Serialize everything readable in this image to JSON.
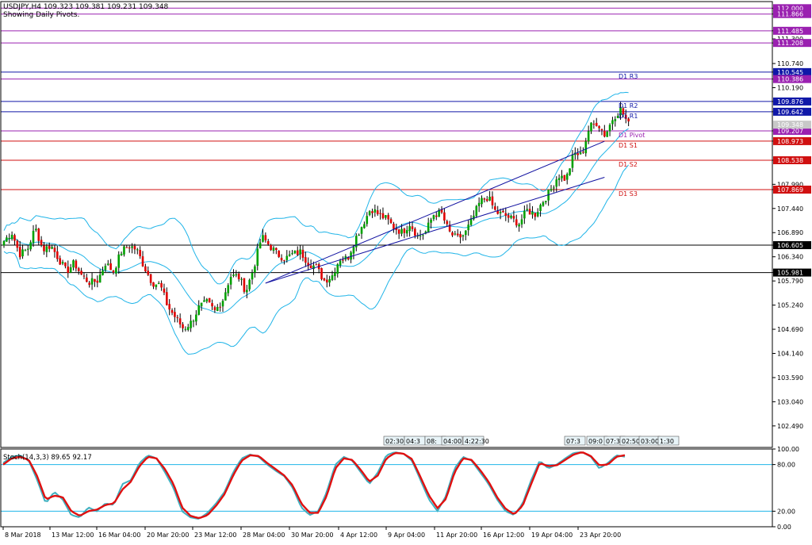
{
  "header": {
    "symbol_line": "USDJPY,H4  109.323 109.381 109.231 109.348",
    "pivots_line": "Showing Daily Pivots."
  },
  "stoch_label": "Stoch(14,3,3) 89.65 92.17",
  "colors": {
    "bull_candle": "#00a000",
    "bear_candle": "#e00000",
    "bollinger": "#1fb4e8",
    "trendline": "#1010a0",
    "pivot_main": "#1018a8",
    "resistance": "#1018a8",
    "support": "#d01010",
    "monthly": "#9a20b0",
    "horizontal_sr": "#000000",
    "stoch_main": "#40b0c0",
    "stoch_signal": "#e01010",
    "stoch_levels": "#1fb4e8"
  },
  "chart_data": [
    {
      "type": "candlestick",
      "title": "USDJPY,H4",
      "ylim": [
        102.0,
        112.15
      ],
      "y_ticks": [
        "112.000",
        "111.866",
        "111.485",
        "111.300",
        "111.208",
        "110.740",
        "110.545",
        "110.386",
        "110.190",
        "109.876",
        "109.642",
        "109.207",
        "108.973",
        "108.538",
        "107.990",
        "107.869",
        "107.440",
        "106.890",
        "106.605",
        "106.340",
        "105.981",
        "105.790",
        "105.240",
        "104.690",
        "104.140",
        "103.590",
        "103.040",
        "102.490"
      ],
      "x_labels": [
        "8 Mar 2018",
        "13 Mar 12:00",
        "16 Mar 04:00",
        "20 Mar 20:00",
        "23 Mar 12:00",
        "28 Mar 04:00",
        "30 Mar 20:00",
        "4 Apr 12:00",
        "9 Apr 04:00",
        "11 Apr 20:00",
        "16 Apr 12:00",
        "19 Apr 04:00",
        "23 Apr 20:00"
      ],
      "current_price": "109.348",
      "price_levels": [
        {
          "value": 112.0,
          "label": "112.000",
          "kind": "monthly"
        },
        {
          "value": 111.866,
          "label": "111.866",
          "kind": "monthly"
        },
        {
          "value": 111.485,
          "label": "111.485",
          "kind": "monthly"
        },
        {
          "value": 111.208,
          "label": "111.208",
          "kind": "monthly"
        },
        {
          "value": 110.545,
          "label": "110.545",
          "kind": "resistance"
        },
        {
          "value": 110.386,
          "label": "110.386",
          "kind": "monthly"
        },
        {
          "value": 109.876,
          "label": "109.876",
          "kind": "resistance"
        },
        {
          "value": 109.642,
          "label": "109.642",
          "kind": "resistance"
        },
        {
          "value": 109.207,
          "label": "109.207",
          "kind": "monthly"
        },
        {
          "value": 108.973,
          "label": "108.973",
          "kind": "support"
        },
        {
          "value": 108.538,
          "label": "108.538",
          "kind": "support"
        },
        {
          "value": 107.869,
          "label": "107.869",
          "kind": "support"
        },
        {
          "value": 106.605,
          "label": "106.605",
          "kind": "horizontal_sr"
        },
        {
          "value": 105.981,
          "label": "105.981",
          "kind": "horizontal_sr"
        }
      ],
      "pivot_labels": [
        {
          "label": "D1 R3",
          "value": 110.545,
          "color": "#1018a8"
        },
        {
          "label": "D1 R2",
          "value": 109.876,
          "color": "#1018a8"
        },
        {
          "label": "D1 R1",
          "value": 109.642,
          "color": "#1018a8"
        },
        {
          "label": "D1 Pivot",
          "value": 109.207,
          "color": "#9a20b0"
        },
        {
          "label": "D1 S1",
          "value": 108.973,
          "color": "#d01010"
        },
        {
          "label": "D1 S2",
          "value": 108.538,
          "color": "#d01010"
        },
        {
          "label": "D1 S3",
          "value": 107.869,
          "color": "#d01010"
        }
      ],
      "trendlines": [
        {
          "from": {
            "bar": 98,
            "price": 105.74
          },
          "to": {
            "bar": 225,
            "price": 108.97
          }
        },
        {
          "from": {
            "bar": 98,
            "price": 105.74
          },
          "to": {
            "bar": 225,
            "price": 108.15
          }
        }
      ],
      "candles_ohlc_anchor_closes": [
        106.7,
        106.9,
        106.4,
        106.5,
        107.0,
        106.5,
        106.6,
        106.3,
        106.0,
        106.2,
        105.9,
        105.75,
        105.8,
        106.2,
        106.0,
        106.45,
        106.6,
        106.5,
        106.1,
        105.75,
        105.7,
        105.2,
        104.95,
        104.7,
        104.85,
        105.2,
        105.3,
        105.1,
        105.35,
        105.9,
        105.9,
        105.55,
        106.1,
        106.8,
        106.6,
        106.4,
        106.3,
        106.4,
        106.45,
        106.2,
        106.1,
        105.8,
        105.9,
        106.3,
        106.3,
        106.75,
        107.1,
        107.45,
        107.3,
        107.2,
        107.0,
        106.9,
        107.1,
        106.8,
        106.9,
        107.3,
        107.35,
        106.9,
        106.75,
        106.85,
        107.2,
        107.6,
        107.7,
        107.35,
        107.3,
        107.2,
        107.1,
        107.4,
        107.3,
        107.6,
        107.85,
        108.2,
        108.1,
        108.7,
        108.65,
        109.3,
        109.4,
        109.1,
        109.5,
        109.7,
        109.35
      ],
      "x_markers": [
        "02:30",
        "04:3",
        "08:",
        "04:00",
        "4:22:30",
        "07:3",
        "09:0",
        "07:3",
        "02:50",
        "03:00",
        "1:30"
      ]
    },
    {
      "type": "line",
      "title": "Stoch(14,3,3)",
      "ylim": [
        0,
        100
      ],
      "y_ticks": [
        "100.00",
        "80.00",
        "20.00",
        "0.00"
      ],
      "levels": [
        80,
        20
      ],
      "main_value": 89.65,
      "signal_value": 92.17,
      "series": [
        {
          "name": "main",
          "anchors": [
            82,
            90,
            92,
            85,
            60,
            30,
            45,
            35,
            15,
            12,
            25,
            20,
            30,
            28,
            55,
            60,
            82,
            92,
            88,
            70,
            50,
            20,
            12,
            10,
            18,
            30,
            45,
            70,
            88,
            93,
            90,
            80,
            72,
            65,
            50,
            25,
            15,
            20,
            45,
            80,
            90,
            85,
            70,
            55,
            70,
            92,
            96,
            94,
            85,
            60,
            35,
            20,
            40,
            75,
            90,
            85,
            70,
            55,
            35,
            20,
            15,
            30,
            60,
            85,
            75,
            80,
            88,
            95,
            96,
            90,
            75,
            82,
            92,
            90
          ]
        },
        {
          "name": "signal",
          "anchors": [
            80,
            88,
            90,
            86,
            65,
            35,
            40,
            38,
            20,
            14,
            20,
            22,
            28,
            30,
            48,
            58,
            78,
            90,
            88,
            74,
            55,
            25,
            14,
            11,
            15,
            27,
            42,
            66,
            85,
            92,
            91,
            82,
            74,
            66,
            53,
            30,
            18,
            18,
            40,
            75,
            88,
            86,
            73,
            58,
            66,
            88,
            95,
            94,
            87,
            64,
            40,
            24,
            36,
            70,
            88,
            86,
            73,
            58,
            38,
            23,
            16,
            27,
            55,
            82,
            78,
            79,
            86,
            93,
            96,
            91,
            79,
            80,
            90,
            92
          ]
        }
      ]
    }
  ]
}
